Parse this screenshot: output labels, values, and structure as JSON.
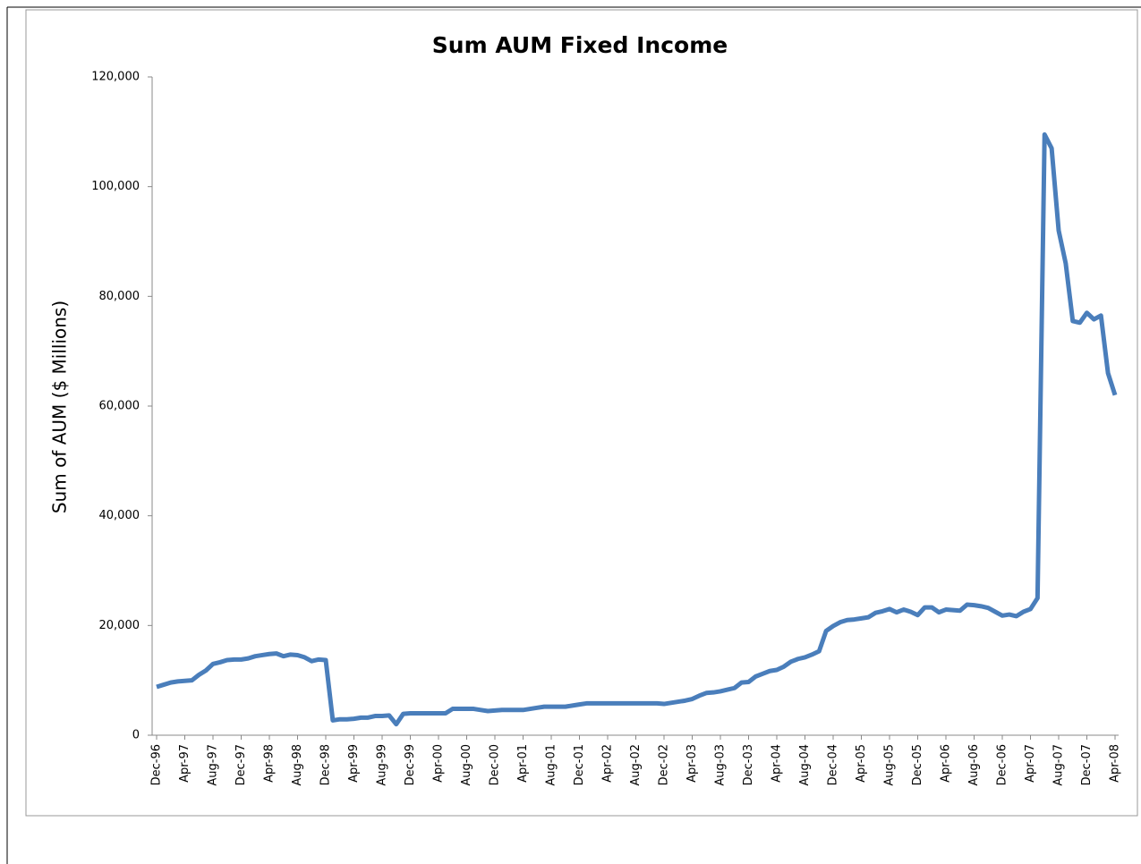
{
  "chart_data": {
    "type": "line",
    "title": "Sum AUM Fixed Income",
    "y_label": "Sum of AUM ($ Millions)",
    "color": "#4a7ebb",
    "categories": [
      "Dec-96",
      null,
      null,
      null,
      "Apr-97",
      null,
      null,
      null,
      "Aug-97",
      null,
      null,
      null,
      "Dec-97",
      null,
      null,
      null,
      "Apr-98",
      null,
      null,
      null,
      "Aug-98",
      null,
      null,
      null,
      "Dec-98",
      null,
      null,
      null,
      "Apr-99",
      null,
      null,
      null,
      "Aug-99",
      null,
      null,
      null,
      "Dec-99",
      null,
      null,
      null,
      "Apr-00",
      null,
      null,
      null,
      "Aug-00",
      null,
      null,
      null,
      "Dec-00",
      null,
      null,
      null,
      "Apr-01",
      null,
      null,
      null,
      "Aug-01",
      null,
      null,
      null,
      "Dec-01",
      null,
      null,
      null,
      "Apr-02",
      null,
      null,
      null,
      "Aug-02",
      null,
      null,
      null,
      "Dec-02",
      null,
      null,
      null,
      "Apr-03",
      null,
      null,
      null,
      "Aug-03",
      null,
      null,
      null,
      "Dec-03",
      null,
      null,
      null,
      "Apr-04",
      null,
      null,
      null,
      "Aug-04",
      null,
      null,
      null,
      "Dec-04",
      null,
      null,
      null,
      "Apr-05",
      null,
      null,
      null,
      "Aug-05",
      null,
      null,
      null,
      "Dec-05",
      null,
      null,
      null,
      "Apr-06",
      null,
      null,
      null,
      "Aug-06",
      null,
      null,
      null,
      "Dec-06",
      null,
      null,
      null,
      "Apr-07",
      null,
      null,
      null,
      "Aug-07",
      null,
      null,
      null,
      "Dec-07",
      null,
      null,
      null,
      "Apr-08"
    ],
    "values": [
      8800,
      9200,
      9600,
      9800,
      9900,
      10000,
      11000,
      11800,
      13000,
      13300,
      13700,
      13800,
      13800,
      14000,
      14400,
      14600,
      14800,
      14900,
      14400,
      14700,
      14600,
      14200,
      13500,
      13800,
      13700,
      2700,
      2900,
      2900,
      3000,
      3200,
      3200,
      3500,
      3500,
      3600,
      2000,
      3900,
      4000,
      4000,
      4000,
      4000,
      4000,
      4000,
      4800,
      4800,
      4800,
      4800,
      4600,
      4400,
      4500,
      4600,
      4600,
      4600,
      4600,
      4800,
      5000,
      5200,
      5200,
      5200,
      5200,
      5400,
      5600,
      5800,
      5800,
      5800,
      5800,
      5800,
      5800,
      5800,
      5800,
      5800,
      5800,
      5800,
      5700,
      5900,
      6100,
      6300,
      6600,
      7200,
      7700,
      7800,
      8000,
      8300,
      8600,
      9600,
      9700,
      10700,
      11200,
      11700,
      11900,
      12500,
      13400,
      13900,
      14200,
      14700,
      15300,
      19000,
      19900,
      20600,
      21000,
      21100,
      21300,
      21500,
      22300,
      22600,
      23000,
      22400,
      22900,
      22500,
      21900,
      23300,
      23300,
      22400,
      22900,
      22800,
      22700,
      23800,
      23700,
      23500,
      23200,
      22500,
      21800,
      22000,
      21700,
      22500,
      23000,
      25000,
      109500,
      107000,
      92000,
      86000,
      75500,
      75200,
      77000,
      75800,
      76500,
      66000,
      62000
    ],
    "ylim": [
      0,
      120000
    ],
    "yticks": [
      0,
      {
        "value": 20000,
        "label": "20,000"
      },
      {
        "value": 40000,
        "label": "40,000"
      },
      {
        "value": 60000,
        "label": "60,000"
      },
      {
        "value": 80000,
        "label": "80,000"
      },
      {
        "value": 100000,
        "label": "100,000"
      },
      {
        "value": 120000,
        "label": "120,000"
      }
    ],
    "grid": false
  }
}
